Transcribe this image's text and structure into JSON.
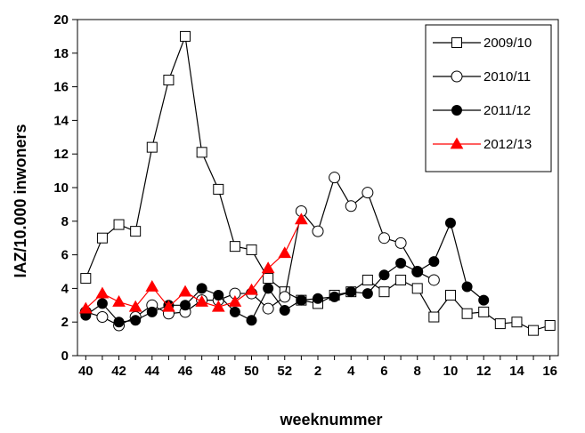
{
  "chart_data": {
    "type": "line",
    "xlabel": "weeknummer",
    "ylabel": "IAZ/10.000 inwoners",
    "ylim": [
      0,
      20
    ],
    "yticks": [
      0,
      2,
      4,
      6,
      8,
      10,
      12,
      14,
      16,
      18,
      20
    ],
    "x_categories": [
      "40",
      "41",
      "42",
      "43",
      "44",
      "45",
      "46",
      "47",
      "48",
      "49",
      "50",
      "51",
      "52",
      "1",
      "2",
      "3",
      "4",
      "5",
      "6",
      "7",
      "8",
      "9",
      "10",
      "11",
      "12",
      "13",
      "14",
      "15",
      "16"
    ],
    "x_tick_labels": [
      "40",
      "42",
      "44",
      "46",
      "48",
      "50",
      "52",
      "2",
      "4",
      "6",
      "8",
      "10",
      "12",
      "14",
      "16"
    ],
    "legend_position": "top-right",
    "series": [
      {
        "name": "2009/10",
        "marker": "open-square",
        "color": "#000000",
        "values": [
          4.6,
          7.0,
          7.8,
          7.4,
          12.4,
          16.4,
          19.0,
          12.1,
          9.9,
          6.5,
          6.3,
          4.6,
          3.8,
          3.3,
          3.1,
          3.6,
          3.8,
          4.5,
          3.8,
          4.5,
          4.0,
          2.3,
          3.6,
          2.5,
          2.6,
          1.9,
          2.0,
          1.5,
          1.8
        ]
      },
      {
        "name": "2010/11",
        "marker": "open-circle",
        "color": "#000000",
        "values": [
          2.6,
          2.3,
          1.8,
          2.3,
          3.0,
          2.5,
          2.6,
          3.3,
          3.3,
          3.7,
          3.7,
          2.8,
          3.5,
          8.6,
          7.4,
          10.6,
          8.9,
          9.7,
          7.0,
          6.7,
          5.0,
          4.5,
          null,
          null,
          null,
          null,
          null,
          null,
          null
        ]
      },
      {
        "name": "2011/12",
        "marker": "filled-circle",
        "color": "#000000",
        "values": [
          2.4,
          3.1,
          2.0,
          2.1,
          2.6,
          3.0,
          3.0,
          4.0,
          3.6,
          2.6,
          2.1,
          4.0,
          2.7,
          3.3,
          3.4,
          3.5,
          3.8,
          3.7,
          4.8,
          5.5,
          5.0,
          5.6,
          7.9,
          4.1,
          3.3,
          null,
          null,
          null,
          null
        ]
      },
      {
        "name": "2012/13",
        "marker": "filled-triangle",
        "color": "#ff0000",
        "values": [
          2.8,
          3.7,
          3.2,
          2.9,
          4.1,
          2.9,
          3.8,
          3.2,
          2.9,
          3.2,
          3.9,
          5.2,
          6.1,
          8.1,
          null,
          null,
          null,
          null,
          null,
          null,
          null,
          null,
          null,
          null,
          null,
          null,
          null,
          null,
          null
        ]
      }
    ]
  }
}
